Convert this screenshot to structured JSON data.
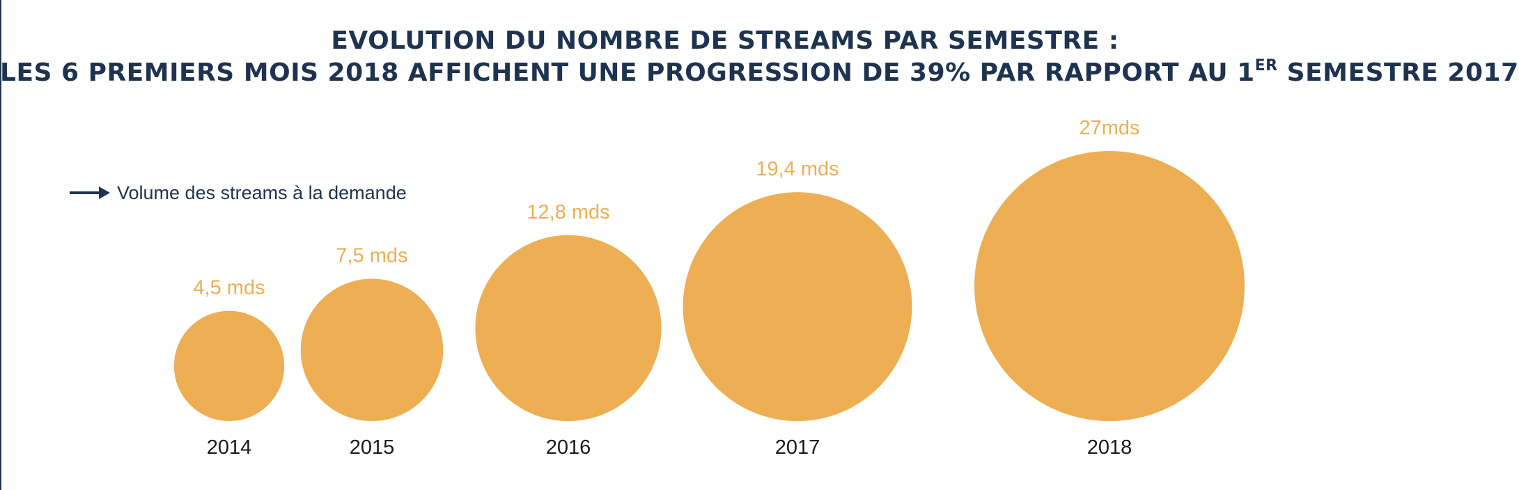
{
  "title_line1": "EVOLUTION DU NOMBRE DE STREAMS PAR SEMESTRE :",
  "title_line2_before": "LES 6 PREMIERS MOIS 2018 AFFICHENT UNE PROGRESSION DE 39% PAR RAPPORT AU 1",
  "title_line2_sup": "ER",
  "title_line2_after": " SEMESTRE 2017",
  "legend_label": "Volume des streams à la demande",
  "colors": {
    "bubble": "#eeae54",
    "title": "#1e3350",
    "legend_arrow": "#1e3350"
  },
  "chart_data": {
    "type": "bubble",
    "series": [
      {
        "name": "Volume des streams à la demande",
        "points": [
          {
            "x": "2014",
            "value": 4.5,
            "label": "4,5 mds"
          },
          {
            "x": "2015",
            "value": 7.5,
            "label": "7,5 mds"
          },
          {
            "x": "2016",
            "value": 12.8,
            "label": "12,8 mds"
          },
          {
            "x": "2017",
            "value": 19.4,
            "label": "19,4 mds"
          },
          {
            "x": "2018",
            "value": 27,
            "label": "27mds"
          }
        ]
      }
    ],
    "unit": "mds",
    "grid": false,
    "axes": false,
    "legend_placement": "top-left"
  }
}
